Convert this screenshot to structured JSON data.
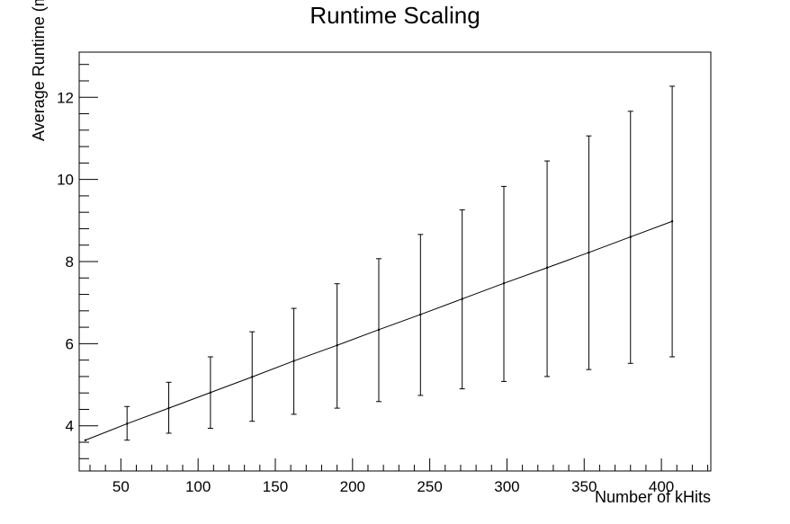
{
  "chart_data": {
    "type": "line",
    "title": "Runtime Scaling",
    "xlabel": "Number of kHits",
    "ylabel": "Average Runtime (ms)",
    "xlim": [
      23,
      432
    ],
    "ylim": [
      2.9,
      13.1
    ],
    "x_ticks": [
      "50",
      "100",
      "150",
      "200",
      "250",
      "300",
      "350",
      "400"
    ],
    "x_tick_values": [
      50,
      100,
      150,
      200,
      250,
      300,
      350,
      400
    ],
    "y_ticks": [
      "4",
      "6",
      "8",
      "10",
      "12"
    ],
    "y_tick_values": [
      4,
      6,
      8,
      10,
      12
    ],
    "grid": false,
    "series": [
      {
        "x": [
          27,
          54,
          81,
          108,
          135,
          162,
          190,
          217,
          244,
          271,
          298,
          326,
          353,
          380,
          407
        ],
        "y": [
          3.65,
          4.05,
          4.43,
          4.81,
          5.19,
          5.58,
          5.96,
          6.34,
          6.71,
          7.09,
          7.47,
          7.85,
          8.22,
          8.6,
          8.98
        ],
        "y_low": [
          3.65,
          3.65,
          3.82,
          3.94,
          4.11,
          4.28,
          4.43,
          4.59,
          4.74,
          4.9,
          5.08,
          5.2,
          5.37,
          5.52,
          5.68
        ],
        "y_high": [
          3.65,
          4.47,
          5.06,
          5.68,
          6.29,
          6.86,
          7.46,
          8.07,
          8.66,
          9.26,
          9.83,
          10.45,
          11.06,
          11.66,
          12.27
        ]
      }
    ]
  }
}
